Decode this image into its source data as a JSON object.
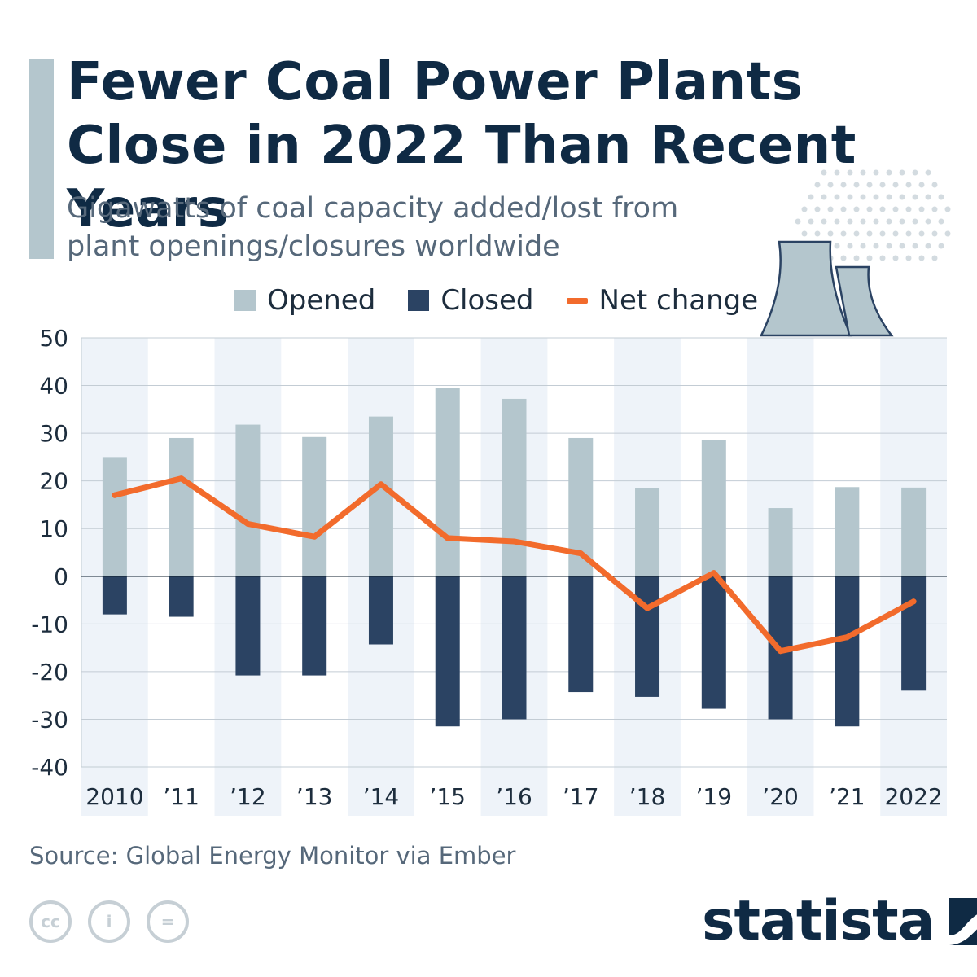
{
  "header": {
    "title": "Fewer Coal Power Plants Close in 2022 Than Recent Years",
    "subtitle": "Gigawatts of coal capacity added/lost from plant openings/closures worldwide"
  },
  "legend": {
    "opened": "Opened",
    "closed": "Closed",
    "net": "Net change"
  },
  "colors": {
    "opened": "#b4c6cd",
    "closed": "#2b4363",
    "net": "#f26b2c",
    "band": "#eef3f9",
    "title": "#0f2a44"
  },
  "chart_data": {
    "type": "bar",
    "title": "Fewer Coal Power Plants Close in 2022 Than Recent Years",
    "ylabel": "Gigawatts",
    "ylim": [
      -40,
      50
    ],
    "yticks": [
      "50",
      "40",
      "30",
      "20",
      "10",
      "0",
      "-10",
      "-20",
      "-30",
      "-40"
    ],
    "categories": [
      "2010",
      "’11",
      "’12",
      "’13",
      "’14",
      "’15",
      "’16",
      "’17",
      "’18",
      "’19",
      "’20",
      "’21",
      "2022"
    ],
    "series": [
      {
        "name": "Opened",
        "kind": "bar",
        "values": [
          25.0,
          29.0,
          31.8,
          29.2,
          33.5,
          39.5,
          37.2,
          29.0,
          18.5,
          28.5,
          14.3,
          18.7,
          18.6
        ]
      },
      {
        "name": "Closed",
        "kind": "bar",
        "values": [
          -8.0,
          -8.5,
          -20.8,
          -20.8,
          -14.3,
          -31.5,
          -30.0,
          -24.3,
          -25.3,
          -27.8,
          -30.0,
          -31.5,
          -24.0
        ]
      },
      {
        "name": "Net change",
        "kind": "line",
        "values": [
          17.0,
          20.5,
          11.0,
          8.3,
          19.3,
          8.0,
          7.3,
          4.8,
          -6.7,
          0.7,
          -15.7,
          -12.8,
          -5.3
        ]
      }
    ]
  },
  "footer": {
    "source": "Source: Global Energy Monitor via Ember",
    "brand": "statista",
    "cc_icons": [
      {
        "name": "cc-icon",
        "glyph": "cc"
      },
      {
        "name": "attribution-icon",
        "glyph": "i"
      },
      {
        "name": "no-derivatives-icon",
        "glyph": "="
      }
    ]
  }
}
